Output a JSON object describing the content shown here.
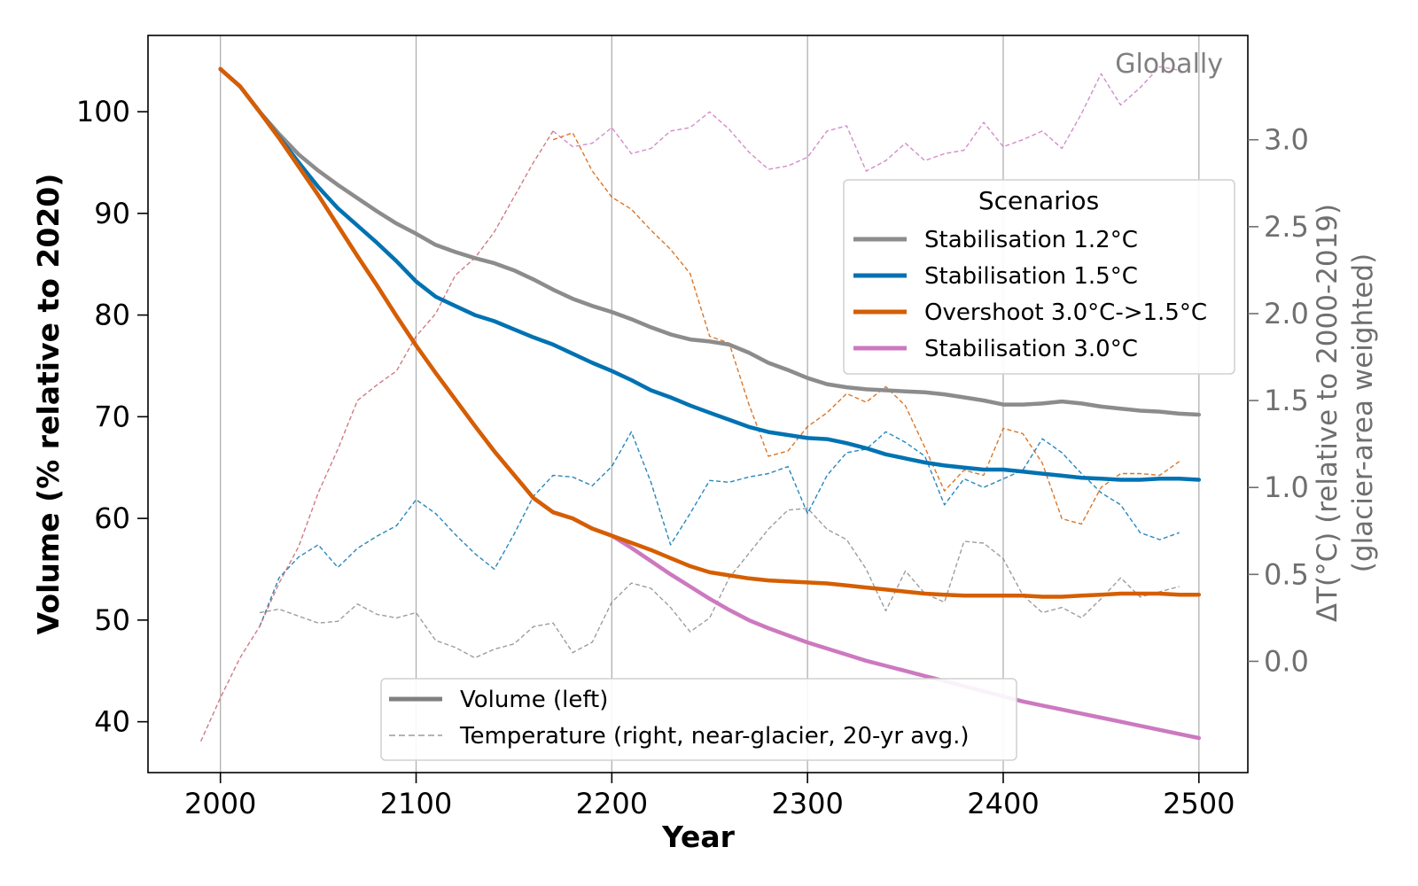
{
  "chart_data": {
    "type": "line",
    "annotation": "Globally",
    "xlabel": "Year",
    "ylabel_left": "Volume (% relative to 2020)",
    "ylabel_right": "ΔT(°C) (relative to 2000-2019)\n(glacier-area weighted)",
    "xlim": [
      1963,
      2525
    ],
    "ylim_left": [
      35,
      107.5
    ],
    "ylim_right": [
      -0.64,
      3.6
    ],
    "x_ticks": [
      2000,
      2100,
      2200,
      2300,
      2400,
      2500
    ],
    "y_ticks_left": [
      40,
      50,
      60,
      70,
      80,
      90,
      100
    ],
    "y_ticks_right": [
      0.0,
      0.5,
      1.0,
      1.5,
      2.0,
      2.5,
      3.0
    ],
    "y_tick_labels_right": [
      "0.0",
      "0.5",
      "1.0",
      "1.5",
      "2.0",
      "2.5",
      "3.0"
    ],
    "grid": "vertical",
    "legend_scenarios": {
      "title": "Scenarios",
      "placement": "right",
      "entries": [
        "Stabilisation 1.2°C",
        "Stabilisation 1.5°C",
        "Overshoot 3.0°C->1.5°C",
        "Stabilisation 3.0°C"
      ]
    },
    "legend_style": {
      "placement": "bottom-center",
      "entries": [
        "Volume (left)",
        "Temperature (right, near-glacier, 20-yr avg.)"
      ]
    },
    "colors": {
      "Stabilisation 1.2°C": "#8c8c8c",
      "Stabilisation 1.5°C": "#0072b2",
      "Overshoot 3.0°C->1.5°C": "#d55e00",
      "Stabilisation 3.0°C": "#cc79c0",
      "early_temperature": "#c8646e"
    },
    "volume_series": [
      {
        "name": "Stabilisation 1.2°C",
        "x": [
          2000,
          2010,
          2020,
          2030,
          2040,
          2050,
          2060,
          2070,
          2080,
          2090,
          2100,
          2110,
          2120,
          2130,
          2140,
          2150,
          2160,
          2170,
          2180,
          2190,
          2200,
          2210,
          2220,
          2230,
          2240,
          2250,
          2260,
          2270,
          2280,
          2290,
          2300,
          2310,
          2320,
          2330,
          2340,
          2350,
          2360,
          2370,
          2380,
          2390,
          2400,
          2410,
          2420,
          2430,
          2440,
          2450,
          2460,
          2470,
          2480,
          2490,
          2500
        ],
        "y": [
          104.2,
          102.5,
          100.0,
          97.8,
          95.8,
          94.2,
          92.8,
          91.5,
          90.2,
          89.0,
          88.0,
          86.9,
          86.2,
          85.6,
          85.1,
          84.4,
          83.5,
          82.5,
          81.6,
          80.9,
          80.3,
          79.6,
          78.8,
          78.1,
          77.6,
          77.4,
          77.1,
          76.3,
          75.3,
          74.6,
          73.8,
          73.2,
          72.9,
          72.7,
          72.6,
          72.5,
          72.4,
          72.2,
          71.9,
          71.6,
          71.2,
          71.2,
          71.3,
          71.5,
          71.3,
          71.0,
          70.8,
          70.6,
          70.5,
          70.3,
          70.2
        ]
      },
      {
        "name": "Stabilisation 1.5°C",
        "x": [
          2000,
          2010,
          2020,
          2030,
          2040,
          2050,
          2060,
          2070,
          2080,
          2090,
          2100,
          2110,
          2120,
          2130,
          2140,
          2150,
          2160,
          2170,
          2180,
          2190,
          2200,
          2210,
          2220,
          2230,
          2240,
          2250,
          2260,
          2270,
          2280,
          2290,
          2300,
          2310,
          2320,
          2330,
          2340,
          2350,
          2360,
          2370,
          2380,
          2390,
          2400,
          2410,
          2420,
          2430,
          2440,
          2450,
          2460,
          2470,
          2480,
          2490,
          2500
        ],
        "y": [
          104.2,
          102.5,
          100.0,
          97.5,
          95.0,
          92.6,
          90.5,
          88.8,
          87.1,
          85.3,
          83.3,
          81.8,
          80.9,
          80.0,
          79.4,
          78.6,
          77.8,
          77.1,
          76.2,
          75.3,
          74.5,
          73.6,
          72.6,
          71.9,
          71.1,
          70.4,
          69.7,
          69.0,
          68.5,
          68.2,
          67.9,
          67.8,
          67.4,
          66.9,
          66.3,
          65.9,
          65.5,
          65.2,
          65.0,
          64.8,
          64.8,
          64.6,
          64.4,
          64.2,
          64.0,
          63.9,
          63.8,
          63.8,
          63.9,
          63.9,
          63.8
        ]
      },
      {
        "name": "Overshoot 3.0°C->1.5°C",
        "x": [
          2000,
          2010,
          2020,
          2030,
          2040,
          2050,
          2060,
          2070,
          2080,
          2090,
          2100,
          2110,
          2120,
          2130,
          2140,
          2150,
          2160,
          2170,
          2180,
          2190,
          2200,
          2210,
          2220,
          2230,
          2240,
          2250,
          2260,
          2270,
          2280,
          2290,
          2300,
          2310,
          2320,
          2330,
          2340,
          2350,
          2360,
          2370,
          2380,
          2390,
          2400,
          2410,
          2420,
          2430,
          2440,
          2450,
          2460,
          2470,
          2480,
          2490,
          2500
        ],
        "y": [
          104.2,
          102.5,
          100.0,
          97.4,
          94.6,
          91.8,
          88.8,
          85.8,
          82.9,
          79.9,
          77.0,
          74.3,
          71.7,
          69.1,
          66.6,
          64.3,
          62.0,
          60.6,
          60.0,
          59.0,
          58.3,
          57.6,
          56.9,
          56.1,
          55.3,
          54.7,
          54.4,
          54.1,
          53.9,
          53.8,
          53.7,
          53.6,
          53.4,
          53.2,
          53.0,
          52.8,
          52.6,
          52.5,
          52.4,
          52.4,
          52.4,
          52.4,
          52.3,
          52.3,
          52.4,
          52.5,
          52.6,
          52.6,
          52.6,
          52.5,
          52.5
        ]
      },
      {
        "name": "Stabilisation 3.0°C",
        "x": [
          2000,
          2010,
          2020,
          2030,
          2040,
          2050,
          2060,
          2070,
          2080,
          2090,
          2100,
          2110,
          2120,
          2130,
          2140,
          2150,
          2160,
          2170,
          2180,
          2190,
          2200,
          2210,
          2220,
          2230,
          2240,
          2250,
          2260,
          2270,
          2280,
          2290,
          2300,
          2310,
          2320,
          2330,
          2340,
          2350,
          2360,
          2370,
          2380,
          2390,
          2400,
          2410,
          2420,
          2430,
          2440,
          2450,
          2460,
          2470,
          2480,
          2490,
          2500
        ],
        "y": [
          104.2,
          102.5,
          100.0,
          97.4,
          94.6,
          91.8,
          88.8,
          85.8,
          82.9,
          79.9,
          77.0,
          74.3,
          71.7,
          69.1,
          66.6,
          64.3,
          62.0,
          60.6,
          60.0,
          59.0,
          58.3,
          57.1,
          55.8,
          54.5,
          53.3,
          52.1,
          51.0,
          50.0,
          49.2,
          48.5,
          47.8,
          47.2,
          46.6,
          46.0,
          45.5,
          45.0,
          44.5,
          44.0,
          43.5,
          43.0,
          42.5,
          42.0,
          41.6,
          41.2,
          40.8,
          40.4,
          40.0,
          39.6,
          39.2,
          38.8,
          38.4
        ]
      }
    ],
    "temperature_series": [
      {
        "name": "Stabilisation 1.2°C",
        "x": [
          2020,
          2030,
          2040,
          2050,
          2060,
          2070,
          2080,
          2090,
          2100,
          2110,
          2120,
          2130,
          2140,
          2150,
          2160,
          2170,
          2180,
          2190,
          2200,
          2210,
          2220,
          2230,
          2240,
          2250,
          2260,
          2270,
          2280,
          2290,
          2300,
          2310,
          2320,
          2330,
          2340,
          2350,
          2360,
          2370,
          2380,
          2390,
          2400,
          2410,
          2420,
          2430,
          2440,
          2450,
          2460,
          2470,
          2480,
          2490
        ],
        "y": [
          0.28,
          0.3,
          0.26,
          0.22,
          0.23,
          0.33,
          0.27,
          0.25,
          0.28,
          0.12,
          0.08,
          0.02,
          0.07,
          0.1,
          0.2,
          0.22,
          0.05,
          0.11,
          0.34,
          0.45,
          0.42,
          0.31,
          0.17,
          0.25,
          0.48,
          0.62,
          0.76,
          0.87,
          0.88,
          0.76,
          0.7,
          0.53,
          0.29,
          0.52,
          0.39,
          0.34,
          0.69,
          0.68,
          0.59,
          0.38,
          0.28,
          0.31,
          0.25,
          0.36,
          0.48,
          0.37,
          0.4,
          0.43
        ]
      },
      {
        "name": "Stabilisation 1.5°C",
        "x": [
          2020,
          2030,
          2040,
          2050,
          2060,
          2070,
          2080,
          2090,
          2100,
          2110,
          2120,
          2130,
          2140,
          2150,
          2160,
          2170,
          2180,
          2190,
          2200,
          2210,
          2220,
          2230,
          2240,
          2250,
          2260,
          2270,
          2280,
          2290,
          2300,
          2310,
          2320,
          2330,
          2340,
          2350,
          2360,
          2370,
          2380,
          2390,
          2400,
          2410,
          2420,
          2430,
          2440,
          2450,
          2460,
          2470,
          2480,
          2490
        ],
        "y": [
          0.2,
          0.48,
          0.6,
          0.67,
          0.54,
          0.65,
          0.72,
          0.78,
          0.93,
          0.85,
          0.73,
          0.62,
          0.53,
          0.73,
          0.95,
          1.07,
          1.06,
          1.01,
          1.12,
          1.32,
          1.03,
          0.67,
          0.85,
          1.04,
          1.03,
          1.06,
          1.08,
          1.12,
          0.85,
          1.07,
          1.2,
          1.22,
          1.32,
          1.26,
          1.18,
          0.9,
          1.05,
          1.0,
          1.05,
          1.1,
          1.28,
          1.2,
          1.08,
          0.97,
          0.9,
          0.74,
          0.7,
          0.74
        ]
      },
      {
        "name": "Overshoot 3.0°C->1.5°C",
        "x": [
          2170,
          2180,
          2190,
          2200,
          2210,
          2220,
          2230,
          2240,
          2250,
          2260,
          2270,
          2280,
          2290,
          2300,
          2310,
          2320,
          2330,
          2340,
          2350,
          2360,
          2370,
          2380,
          2390,
          2400,
          2410,
          2420,
          2430,
          2440,
          2450,
          2460,
          2470,
          2480,
          2490
        ],
        "y": [
          3.0,
          3.04,
          2.82,
          2.67,
          2.6,
          2.48,
          2.37,
          2.23,
          1.87,
          1.83,
          1.48,
          1.18,
          1.21,
          1.35,
          1.43,
          1.54,
          1.49,
          1.58,
          1.47,
          1.23,
          0.98,
          1.1,
          1.07,
          1.34,
          1.31,
          1.14,
          0.82,
          0.79,
          1.0,
          1.08,
          1.08,
          1.07,
          1.15
        ]
      },
      {
        "name": "Stabilisation 3.0°C",
        "x": [
          2170,
          2180,
          2190,
          2200,
          2210,
          2220,
          2230,
          2240,
          2250,
          2260,
          2270,
          2280,
          2290,
          2300,
          2310,
          2320,
          2330,
          2340,
          2350,
          2360,
          2370,
          2380,
          2390,
          2400,
          2410,
          2420,
          2430,
          2440,
          2450,
          2460,
          2470,
          2480,
          2490
        ],
        "y": [
          3.05,
          2.96,
          2.98,
          3.07,
          2.92,
          2.95,
          3.05,
          3.07,
          3.16,
          3.06,
          2.93,
          2.83,
          2.85,
          2.9,
          3.05,
          3.08,
          2.82,
          2.88,
          2.98,
          2.88,
          2.92,
          2.94,
          3.1,
          2.96,
          3.0,
          3.05,
          2.95,
          3.15,
          3.38,
          3.2,
          3.3,
          3.42,
          3.4
        ]
      },
      {
        "name": "early_temperature",
        "x": [
          1990,
          2000,
          2010,
          2020,
          2030,
          2040,
          2050,
          2060,
          2070,
          2080,
          2090,
          2100,
          2110,
          2120,
          2130,
          2140,
          2150,
          2160,
          2170
        ],
        "y": [
          -0.46,
          -0.21,
          0.02,
          0.2,
          0.45,
          0.66,
          0.97,
          1.22,
          1.5,
          1.59,
          1.67,
          1.87,
          2.0,
          2.22,
          2.32,
          2.47,
          2.67,
          2.87,
          3.05
        ]
      }
    ]
  }
}
